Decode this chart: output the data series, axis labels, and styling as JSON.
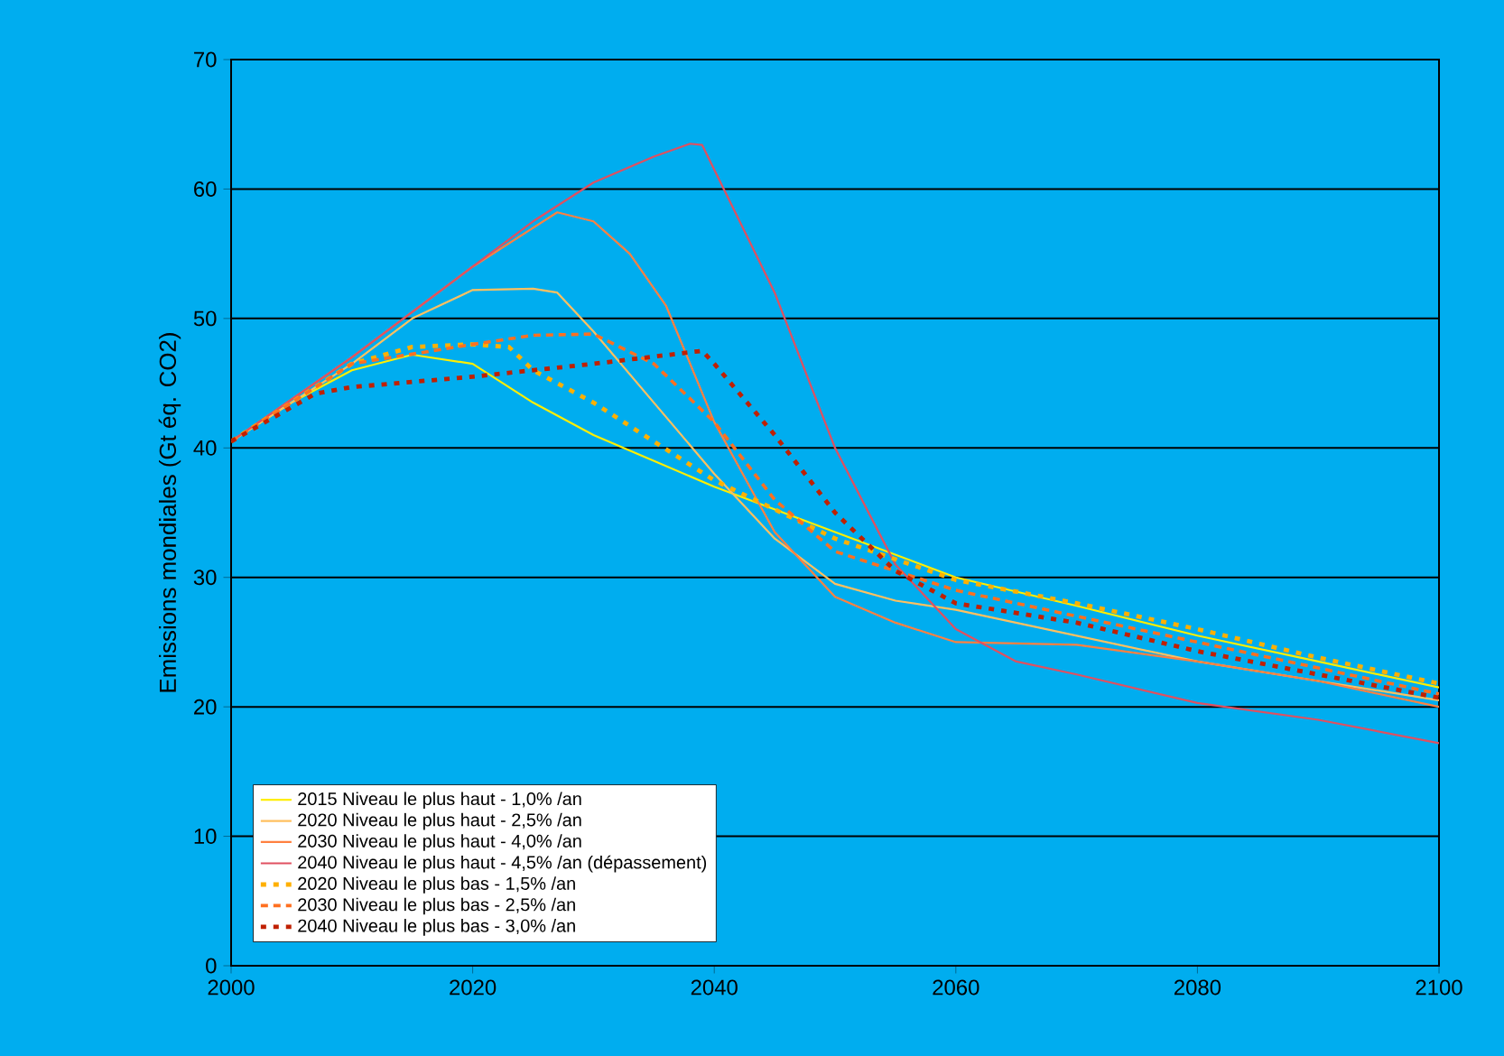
{
  "chart_data": {
    "type": "line",
    "ylabel": "Emissions mondiales (Gt éq. CO2)",
    "xlim": [
      2000,
      2100
    ],
    "xticks": [
      2000,
      2020,
      2040,
      2060,
      2080,
      2100
    ],
    "ylim": [
      0,
      70
    ],
    "yticks": [
      0,
      10,
      20,
      30,
      40,
      50,
      60,
      70
    ],
    "grid": "y",
    "legend": "bottom left",
    "series": [
      {
        "name": "2015 Niveau le plus haut - 1,0% /an",
        "color": "#ffee00",
        "line_style": "solid",
        "x": [
          2000,
          2005,
          2010,
          2015,
          2020,
          2025,
          2030,
          2040,
          2050,
          2060,
          2070,
          2080,
          2090,
          2100
        ],
        "values": [
          40.5,
          43.5,
          46,
          47.2,
          46.5,
          43.5,
          41,
          37,
          33.5,
          30,
          27.8,
          25.5,
          23.5,
          21.5
        ]
      },
      {
        "name": "2020 Niveau le plus haut - 2,5% /an",
        "color": "#ffc060",
        "line_style": "solid",
        "x": [
          2000,
          2010,
          2015,
          2020,
          2025,
          2027,
          2030,
          2035,
          2040,
          2045,
          2050,
          2055,
          2060,
          2070,
          2080,
          2090,
          2100
        ],
        "values": [
          40.5,
          46.5,
          50,
          52.2,
          52.3,
          52,
          49,
          43.5,
          38,
          33,
          29.5,
          28.2,
          27.5,
          25.5,
          23.5,
          22,
          20.5
        ]
      },
      {
        "name": "2030 Niveau le plus haut - 4,0% /an",
        "color": "#ff8040",
        "line_style": "solid",
        "x": [
          2000,
          2010,
          2020,
          2027,
          2030,
          2033,
          2036,
          2040,
          2045,
          2050,
          2055,
          2060,
          2070,
          2080,
          2090,
          2100
        ],
        "values": [
          40.5,
          47,
          54,
          58.2,
          57.5,
          55,
          51,
          42,
          33.5,
          28.5,
          26.5,
          25,
          24.8,
          23.5,
          22,
          20
        ]
      },
      {
        "name": "2040 Niveau le plus haut -  4,5% /an (dépassement)",
        "color": "#e05060",
        "line_style": "solid",
        "x": [
          2000,
          2010,
          2020,
          2025,
          2030,
          2035,
          2038,
          2039,
          2045,
          2050,
          2055,
          2060,
          2065,
          2070,
          2080,
          2090,
          2100
        ],
        "values": [
          40.5,
          47,
          54,
          57.5,
          60.5,
          62.5,
          63.5,
          63.4,
          52,
          40,
          31,
          26,
          23.5,
          22.5,
          20.3,
          19,
          17.2
        ]
      },
      {
        "name": "2020 Niveau le plus bas - 1,5% /an",
        "color": "#ffb000",
        "line_style": "dotted",
        "x": [
          2000,
          2010,
          2015,
          2020,
          2023,
          2025,
          2030,
          2035,
          2040,
          2050,
          2060,
          2070,
          2080,
          2090,
          2100
        ],
        "values": [
          40.5,
          46.5,
          47.8,
          48,
          47.8,
          46,
          43.5,
          40.5,
          37.5,
          33,
          29.8,
          28,
          26,
          23.8,
          21.8
        ]
      },
      {
        "name": "2030 Niveau le plus bas - 2,5% /an",
        "color": "#ff7020",
        "line_style": "dashed",
        "x": [
          2000,
          2010,
          2020,
          2025,
          2030,
          2035,
          2040,
          2045,
          2050,
          2060,
          2070,
          2080,
          2090,
          2100
        ],
        "values": [
          40.5,
          46.5,
          48,
          48.7,
          48.8,
          46.5,
          42,
          36,
          32,
          29,
          27,
          25,
          23,
          21
        ]
      },
      {
        "name": "2040 Niveau le plus bas - 3,0% /an",
        "color": "#c02000",
        "line_style": "dotted",
        "x": [
          2000,
          2007,
          2010,
          2020,
          2030,
          2039,
          2040,
          2045,
          2050,
          2055,
          2060,
          2070,
          2080,
          2090,
          2100
        ],
        "values": [
          40.5,
          44.2,
          44.7,
          45.5,
          46.5,
          47.5,
          46.5,
          41,
          35,
          30.5,
          28,
          26.5,
          24.3,
          22.5,
          20.7
        ]
      }
    ]
  }
}
